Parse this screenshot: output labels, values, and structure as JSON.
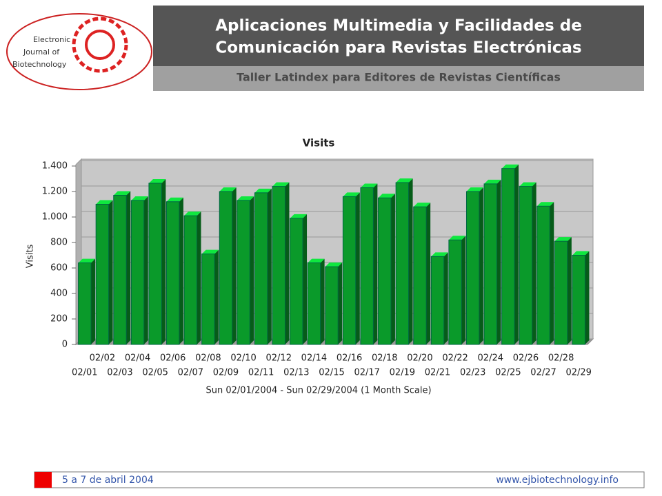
{
  "header": {
    "title_line1": "Aplicaciones Multimedia y Facilidades de",
    "title_line2": "Comunicación para Revistas Electrónicas",
    "subtitle": "Taller Latindex para Editores de Revistas Científicas"
  },
  "logo": {
    "line1": "Electronic",
    "line2": "Journal of",
    "line3": "Biotechnology"
  },
  "footer": {
    "date": "5 a 7 de abril 2004",
    "url": "www.ejbiotechnology.info"
  },
  "chart_data": {
    "type": "bar",
    "title": "Visits",
    "y_label": "Visits",
    "x_label": "Sun 02/01/2004 - Sun 02/29/2004 (1 Month Scale)",
    "categories": [
      "02/01",
      "02/02",
      "02/03",
      "02/04",
      "02/05",
      "02/06",
      "02/07",
      "02/08",
      "02/09",
      "02/10",
      "02/11",
      "02/12",
      "02/13",
      "02/14",
      "02/15",
      "02/16",
      "02/17",
      "02/18",
      "02/19",
      "02/20",
      "02/21",
      "02/22",
      "02/23",
      "02/24",
      "02/25",
      "02/26",
      "02/27",
      "02/28",
      "02/29"
    ],
    "values": [
      640,
      1100,
      1170,
      1130,
      1265,
      1120,
      1010,
      710,
      1200,
      1130,
      1190,
      1240,
      990,
      640,
      610,
      1160,
      1230,
      1150,
      1270,
      1080,
      690,
      820,
      1200,
      1260,
      1380,
      1240,
      1085,
      810,
      700
    ],
    "color": "#0a9a2a",
    "ylim": [
      0,
      1400
    ],
    "yticks": [
      0,
      200,
      400,
      600,
      800,
      {
        "value": 1000,
        "label": "1.000"
      },
      {
        "value": 1200,
        "label": "1.200"
      },
      {
        "value": 1400,
        "label": "1.400"
      }
    ],
    "grid": true
  }
}
